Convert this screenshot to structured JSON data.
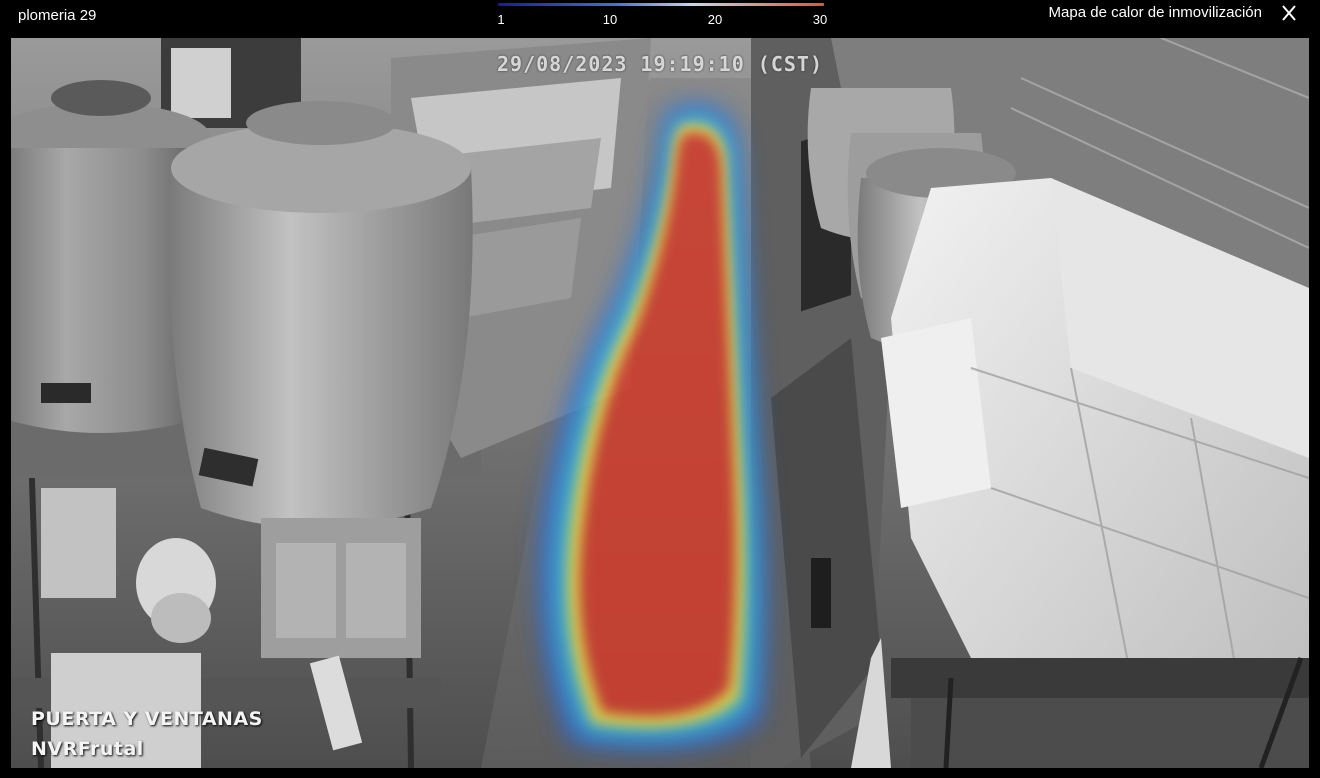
{
  "header": {
    "camera_name": "plomeria 29",
    "mode_title": "Mapa de calor de inmovilización",
    "close_icon": "close-icon"
  },
  "legend": {
    "ticks": [
      "1",
      "10",
      "20",
      "30"
    ],
    "gradient_colors": [
      "#1a1aa0",
      "#3b6fd6",
      "#c9d4e8",
      "#e25533"
    ]
  },
  "video": {
    "timestamp": "29/08/2023 19:19:10 (CST)",
    "location_label": "PUERTA Y VENTANAS",
    "nvr_label": "NVRFrutal",
    "heat_color": "#d23a2a"
  }
}
